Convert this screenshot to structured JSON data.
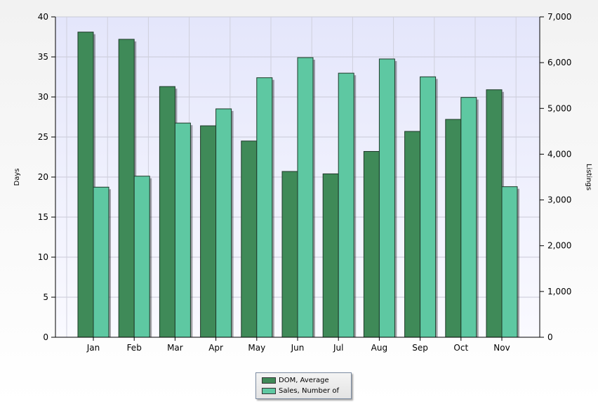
{
  "chart_data": {
    "type": "bar",
    "categories": [
      "Jan",
      "Feb",
      "Mar",
      "Apr",
      "May",
      "Jun",
      "Jul",
      "Aug",
      "Sep",
      "Oct",
      "Nov"
    ],
    "series": [
      {
        "name": "DOM, Average",
        "axis": "left",
        "color": "#3f8a58",
        "values": [
          38.1,
          37.2,
          31.3,
          26.4,
          24.5,
          20.7,
          20.4,
          23.2,
          25.7,
          27.2,
          30.9
        ]
      },
      {
        "name": "Sales, Number of",
        "axis": "right",
        "color": "#5ec8a2",
        "values": [
          3280,
          3520,
          4680,
          4990,
          5670,
          6110,
          5770,
          6080,
          5690,
          5240,
          3290
        ]
      }
    ],
    "ylabel": "Days",
    "y2label": "Listings",
    "ylim": [
      0,
      40
    ],
    "y2lim": [
      0,
      7000
    ],
    "yticks": [
      "0",
      "5",
      "10",
      "15",
      "20",
      "25",
      "30",
      "35",
      "40"
    ],
    "y2ticks": [
      "0",
      "1,000",
      "2,000",
      "3,000",
      "4,000",
      "5,000",
      "6,000",
      "7,000"
    ],
    "grid": true,
    "legend_position": "bottom-center"
  }
}
